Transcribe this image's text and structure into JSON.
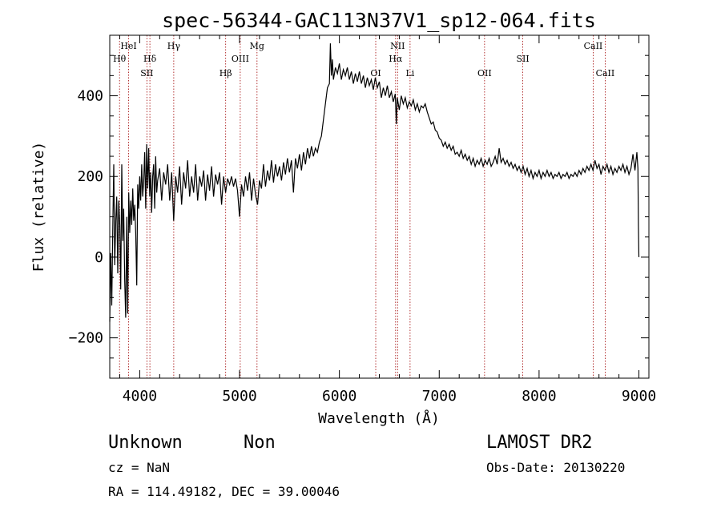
{
  "chart_data": {
    "type": "line",
    "title": "spec-56344-GAC113N37V1_sp12-064.fits",
    "xlabel": "Wavelength (Å)",
    "ylabel": "Flux (relative)",
    "xlim": [
      3700,
      9100
    ],
    "ylim": [
      -300,
      550
    ],
    "xticks": [
      4000,
      5000,
      6000,
      7000,
      8000,
      9000
    ],
    "yticks": [
      -200,
      0,
      200,
      400
    ],
    "grid": false,
    "series": [
      {
        "points": [
          [
            3700,
            -160
          ],
          [
            3710,
            10
          ],
          [
            3720,
            -120
          ],
          [
            3730,
            60
          ],
          [
            3740,
            230
          ],
          [
            3750,
            -20
          ],
          [
            3760,
            90
          ],
          [
            3770,
            150
          ],
          [
            3780,
            -40
          ],
          [
            3790,
            140
          ],
          [
            3800,
            80
          ],
          [
            3810,
            -80
          ],
          [
            3820,
            230
          ],
          [
            3830,
            40
          ],
          [
            3840,
            120
          ],
          [
            3850,
            -60
          ],
          [
            3860,
            -150
          ],
          [
            3870,
            100
          ],
          [
            3880,
            -140
          ],
          [
            3890,
            160
          ],
          [
            3900,
            60
          ],
          [
            3910,
            140
          ],
          [
            3920,
            80
          ],
          [
            3930,
            170
          ],
          [
            3940,
            90
          ],
          [
            3950,
            130
          ],
          [
            3960,
            60
          ],
          [
            3970,
            -70
          ],
          [
            3980,
            180
          ],
          [
            3990,
            120
          ],
          [
            4000,
            200
          ],
          [
            4010,
            140
          ],
          [
            4020,
            230
          ],
          [
            4030,
            150
          ],
          [
            4040,
            190
          ],
          [
            4050,
            260
          ],
          [
            4060,
            120
          ],
          [
            4070,
            280
          ],
          [
            4080,
            170
          ],
          [
            4090,
            270
          ],
          [
            4100,
            150
          ],
          [
            4110,
            210
          ],
          [
            4120,
            110
          ],
          [
            4130,
            200
          ],
          [
            4140,
            230
          ],
          [
            4150,
            120
          ],
          [
            4160,
            250
          ],
          [
            4170,
            160
          ],
          [
            4180,
            190
          ],
          [
            4200,
            220
          ],
          [
            4220,
            140
          ],
          [
            4240,
            210
          ],
          [
            4260,
            180
          ],
          [
            4280,
            230
          ],
          [
            4300,
            140
          ],
          [
            4320,
            210
          ],
          [
            4340,
            90
          ],
          [
            4360,
            200
          ],
          [
            4380,
            160
          ],
          [
            4400,
            225
          ],
          [
            4420,
            130
          ],
          [
            4440,
            210
          ],
          [
            4460,
            170
          ],
          [
            4480,
            240
          ],
          [
            4500,
            150
          ],
          [
            4520,
            200
          ],
          [
            4540,
            160
          ],
          [
            4560,
            230
          ],
          [
            4580,
            140
          ],
          [
            4600,
            200
          ],
          [
            4620,
            175
          ],
          [
            4640,
            215
          ],
          [
            4660,
            140
          ],
          [
            4680,
            205
          ],
          [
            4700,
            165
          ],
          [
            4720,
            225
          ],
          [
            4740,
            150
          ],
          [
            4760,
            205
          ],
          [
            4780,
            180
          ],
          [
            4800,
            210
          ],
          [
            4820,
            130
          ],
          [
            4840,
            200
          ],
          [
            4860,
            160
          ],
          [
            4880,
            195
          ],
          [
            4900,
            180
          ],
          [
            4920,
            200
          ],
          [
            4940,
            175
          ],
          [
            4960,
            195
          ],
          [
            4980,
            165
          ],
          [
            5000,
            100
          ],
          [
            5020,
            180
          ],
          [
            5040,
            150
          ],
          [
            5060,
            200
          ],
          [
            5080,
            165
          ],
          [
            5100,
            210
          ],
          [
            5120,
            140
          ],
          [
            5140,
            195
          ],
          [
            5160,
            155
          ],
          [
            5180,
            130
          ],
          [
            5200,
            190
          ],
          [
            5220,
            170
          ],
          [
            5240,
            230
          ],
          [
            5260,
            175
          ],
          [
            5280,
            215
          ],
          [
            5300,
            190
          ],
          [
            5320,
            240
          ],
          [
            5340,
            185
          ],
          [
            5360,
            230
          ],
          [
            5380,
            200
          ],
          [
            5400,
            225
          ],
          [
            5420,
            190
          ],
          [
            5440,
            235
          ],
          [
            5460,
            205
          ],
          [
            5480,
            245
          ],
          [
            5500,
            210
          ],
          [
            5520,
            240
          ],
          [
            5540,
            160
          ],
          [
            5560,
            245
          ],
          [
            5580,
            220
          ],
          [
            5600,
            255
          ],
          [
            5620,
            215
          ],
          [
            5640,
            260
          ],
          [
            5660,
            230
          ],
          [
            5680,
            270
          ],
          [
            5700,
            245
          ],
          [
            5720,
            275
          ],
          [
            5740,
            250
          ],
          [
            5760,
            270
          ],
          [
            5780,
            260
          ],
          [
            5800,
            285
          ],
          [
            5820,
            300
          ],
          [
            5840,
            340
          ],
          [
            5860,
            380
          ],
          [
            5880,
            420
          ],
          [
            5900,
            430
          ],
          [
            5910,
            530
          ],
          [
            5920,
            450
          ],
          [
            5930,
            490
          ],
          [
            5940,
            440
          ],
          [
            5960,
            470
          ],
          [
            5980,
            455
          ],
          [
            6000,
            480
          ],
          [
            6020,
            440
          ],
          [
            6040,
            465
          ],
          [
            6060,
            450
          ],
          [
            6080,
            470
          ],
          [
            6100,
            440
          ],
          [
            6120,
            460
          ],
          [
            6140,
            430
          ],
          [
            6160,
            455
          ],
          [
            6180,
            435
          ],
          [
            6200,
            460
          ],
          [
            6220,
            430
          ],
          [
            6240,
            450
          ],
          [
            6260,
            420
          ],
          [
            6280,
            445
          ],
          [
            6300,
            425
          ],
          [
            6320,
            440
          ],
          [
            6340,
            415
          ],
          [
            6360,
            445
          ],
          [
            6380,
            420
          ],
          [
            6400,
            435
          ],
          [
            6420,
            395
          ],
          [
            6440,
            420
          ],
          [
            6460,
            400
          ],
          [
            6480,
            425
          ],
          [
            6500,
            395
          ],
          [
            6520,
            410
          ],
          [
            6540,
            385
          ],
          [
            6560,
            405
          ],
          [
            6570,
            330
          ],
          [
            6580,
            395
          ],
          [
            6600,
            365
          ],
          [
            6620,
            400
          ],
          [
            6640,
            380
          ],
          [
            6660,
            395
          ],
          [
            6680,
            370
          ],
          [
            6700,
            385
          ],
          [
            6720,
            375
          ],
          [
            6740,
            390
          ],
          [
            6760,
            365
          ],
          [
            6780,
            380
          ],
          [
            6800,
            360
          ],
          [
            6820,
            375
          ],
          [
            6840,
            370
          ],
          [
            6860,
            380
          ],
          [
            6880,
            360
          ],
          [
            6900,
            345
          ],
          [
            6920,
            330
          ],
          [
            6940,
            335
          ],
          [
            6960,
            315
          ],
          [
            6980,
            310
          ],
          [
            7000,
            295
          ],
          [
            7020,
            290
          ],
          [
            7040,
            275
          ],
          [
            7060,
            285
          ],
          [
            7080,
            270
          ],
          [
            7100,
            280
          ],
          [
            7120,
            265
          ],
          [
            7140,
            275
          ],
          [
            7160,
            255
          ],
          [
            7180,
            260
          ],
          [
            7200,
            250
          ],
          [
            7220,
            265
          ],
          [
            7240,
            245
          ],
          [
            7260,
            255
          ],
          [
            7280,
            240
          ],
          [
            7300,
            250
          ],
          [
            7320,
            230
          ],
          [
            7340,
            245
          ],
          [
            7360,
            225
          ],
          [
            7380,
            240
          ],
          [
            7400,
            230
          ],
          [
            7420,
            245
          ],
          [
            7440,
            225
          ],
          [
            7460,
            240
          ],
          [
            7480,
            230
          ],
          [
            7500,
            245
          ],
          [
            7520,
            225
          ],
          [
            7540,
            235
          ],
          [
            7560,
            250
          ],
          [
            7580,
            230
          ],
          [
            7600,
            270
          ],
          [
            7620,
            235
          ],
          [
            7640,
            245
          ],
          [
            7660,
            230
          ],
          [
            7680,
            240
          ],
          [
            7700,
            225
          ],
          [
            7720,
            235
          ],
          [
            7740,
            220
          ],
          [
            7760,
            230
          ],
          [
            7780,
            215
          ],
          [
            7800,
            225
          ],
          [
            7820,
            210
          ],
          [
            7840,
            225
          ],
          [
            7860,
            205
          ],
          [
            7880,
            220
          ],
          [
            7900,
            200
          ],
          [
            7920,
            215
          ],
          [
            7940,
            195
          ],
          [
            7960,
            210
          ],
          [
            7980,
            200
          ],
          [
            8000,
            215
          ],
          [
            8020,
            195
          ],
          [
            8040,
            210
          ],
          [
            8060,
            200
          ],
          [
            8080,
            215
          ],
          [
            8100,
            200
          ],
          [
            8120,
            210
          ],
          [
            8140,
            195
          ],
          [
            8160,
            205
          ],
          [
            8180,
            200
          ],
          [
            8200,
            210
          ],
          [
            8220,
            195
          ],
          [
            8240,
            205
          ],
          [
            8260,
            200
          ],
          [
            8280,
            210
          ],
          [
            8300,
            195
          ],
          [
            8320,
            205
          ],
          [
            8340,
            200
          ],
          [
            8360,
            210
          ],
          [
            8380,
            200
          ],
          [
            8400,
            215
          ],
          [
            8420,
            205
          ],
          [
            8440,
            220
          ],
          [
            8460,
            210
          ],
          [
            8480,
            225
          ],
          [
            8500,
            215
          ],
          [
            8520,
            230
          ],
          [
            8540,
            215
          ],
          [
            8560,
            240
          ],
          [
            8580,
            220
          ],
          [
            8600,
            230
          ],
          [
            8620,
            205
          ],
          [
            8640,
            225
          ],
          [
            8660,
            215
          ],
          [
            8680,
            230
          ],
          [
            8700,
            210
          ],
          [
            8720,
            225
          ],
          [
            8740,
            205
          ],
          [
            8760,
            220
          ],
          [
            8780,
            210
          ],
          [
            8800,
            225
          ],
          [
            8820,
            215
          ],
          [
            8840,
            230
          ],
          [
            8860,
            210
          ],
          [
            8880,
            225
          ],
          [
            8900,
            205
          ],
          [
            8920,
            220
          ],
          [
            8940,
            255
          ],
          [
            8960,
            215
          ],
          [
            8980,
            260
          ],
          [
            8990,
            220
          ],
          [
            8995,
            80
          ],
          [
            9000,
            0
          ]
        ]
      }
    ],
    "line_markers": [
      {
        "label": "Hθ",
        "wavelength": 3798,
        "row": "upper"
      },
      {
        "label": "HeI",
        "wavelength": 3889,
        "row": "top"
      },
      {
        "label": "Hδ",
        "wavelength": 4102,
        "row": "upper"
      },
      {
        "label": "SII",
        "wavelength": 4072,
        "row": "lower"
      },
      {
        "label": "Hγ",
        "wavelength": 4341,
        "row": "top"
      },
      {
        "label": "Hβ",
        "wavelength": 4861,
        "row": "lower"
      },
      {
        "label": "OIII",
        "wavelength": 5007,
        "row": "upper"
      },
      {
        "label": "Mg",
        "wavelength": 5175,
        "row": "top"
      },
      {
        "label": "OI",
        "wavelength": 6364,
        "row": "lower"
      },
      {
        "label": "NII",
        "wavelength": 6583,
        "row": "top"
      },
      {
        "label": "Hα",
        "wavelength": 6563,
        "row": "upper"
      },
      {
        "label": "Li",
        "wavelength": 6708,
        "row": "lower"
      },
      {
        "label": "OII",
        "wavelength": 7454,
        "row": "lower"
      },
      {
        "label": "SII",
        "wavelength": 7837,
        "row": "upper"
      },
      {
        "label": "CaII",
        "wavelength": 8542,
        "row": "top"
      },
      {
        "label": "CaII",
        "wavelength": 8662,
        "row": "lower"
      }
    ]
  },
  "info": {
    "class": "Unknown",
    "subclass": "Non",
    "cz": "cz = NaN",
    "coords": "RA = 114.49182, DEC =  39.00046",
    "survey": "LAMOST DR2",
    "obs_date": "Obs-Date: 20130220"
  },
  "colors": {
    "line": "#000000",
    "marker": "#a00000",
    "axes": "#000000",
    "background": "#ffffff"
  }
}
